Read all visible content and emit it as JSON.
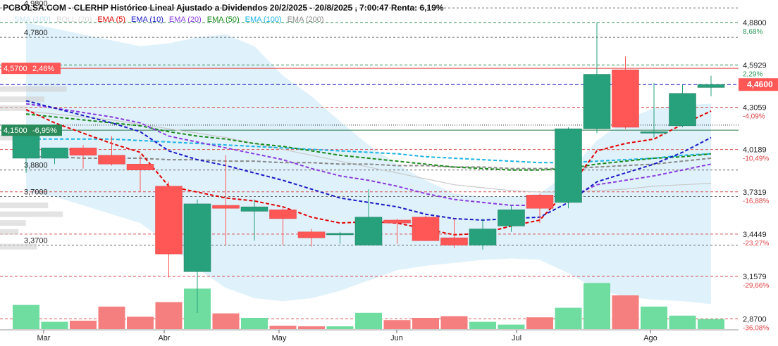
{
  "header": {
    "title": "PCBOLSA.COM - CLERHP Histórico Lineal Ajustado a Dividendos 20/2/2025 - 20/8/2025 , 7:00:47 Renta: 6,19%"
  },
  "legend": [
    {
      "label": "SMA (100)",
      "color": "#8ecae6",
      "faded": true
    },
    {
      "label": "BOLL (20)",
      "color": "#bbbbbb",
      "faded": true
    },
    {
      "label": "EMA (5)",
      "color": "#e00000"
    },
    {
      "label": "EMA (10)",
      "color": "#1a1ac8"
    },
    {
      "label": "EMA (20)",
      "color": "#8a3be0"
    },
    {
      "label": "EMA (50)",
      "color": "#1a8a1a"
    },
    {
      "label": "EMA (100)",
      "color": "#19b3e6"
    },
    {
      "label": "EMA (200)",
      "color": "#888888"
    }
  ],
  "chart_data": {
    "type": "candlestick",
    "y_range": [
      2.8,
      5.01
    ],
    "x_labels": [
      "Mar",
      "Abr",
      "May",
      "Jun",
      "Jul",
      "Ago"
    ],
    "right_axis": [
      {
        "price": "4,8800",
        "pct": "8,68%"
      },
      {
        "price": "4,5929",
        "pct": "2,29%"
      },
      {
        "price": "4,3059",
        "pct": "-4,09%"
      },
      {
        "price": "4,0189",
        "pct": "-10,49%"
      },
      {
        "price": "3,7319",
        "pct": "-16,88%"
      },
      {
        "price": "3,4449",
        "pct": "-23,27%"
      },
      {
        "price": "3,1579",
        "pct": "-29,66%"
      },
      {
        "price": "2,8700",
        "pct": "-36,08%"
      }
    ],
    "left_labels": [
      {
        "text": "4,9800",
        "value": 4.98
      },
      {
        "text": "4,7800",
        "value": 4.78
      },
      {
        "text": "3,8800",
        "value": 3.88
      },
      {
        "text": "3,7000",
        "value": 3.7
      },
      {
        "text": "3,3700",
        "value": 3.37
      }
    ],
    "current_price": {
      "label": "4,4600",
      "value": 4.46
    },
    "reference_line": {
      "label": "4,5700",
      "pct": "2,46%",
      "value": 4.57
    },
    "low_line": {
      "label": "4,1500",
      "pct": "-6,95%",
      "value": 4.15
    },
    "candles": [
      {
        "open": 3.96,
        "high": 4.17,
        "low": 3.86,
        "close": 4.15
      },
      {
        "open": 3.96,
        "high": 4.02,
        "low": 3.92,
        "close": 4.03
      },
      {
        "open": 4.03,
        "high": 4.05,
        "low": 3.89,
        "close": 3.98
      },
      {
        "open": 3.98,
        "high": 4.11,
        "low": 3.91,
        "close": 3.92
      },
      {
        "open": 3.92,
        "high": 3.98,
        "low": 3.73,
        "close": 3.88
      },
      {
        "open": 3.77,
        "high": 3.8,
        "low": 3.15,
        "close": 3.31
      },
      {
        "open": 3.19,
        "high": 3.68,
        "low": 2.91,
        "close": 3.65
      },
      {
        "open": 3.64,
        "high": 3.98,
        "low": 3.37,
        "close": 3.62
      },
      {
        "open": 3.6,
        "high": 3.68,
        "low": 3.4,
        "close": 3.63
      },
      {
        "open": 3.61,
        "high": 3.62,
        "low": 3.37,
        "close": 3.55
      },
      {
        "open": 3.46,
        "high": 3.48,
        "low": 3.36,
        "close": 3.42
      },
      {
        "open": 3.44,
        "high": 3.46,
        "low": 3.38,
        "close": 3.45
      },
      {
        "open": 3.37,
        "high": 3.75,
        "low": 3.37,
        "close": 3.56
      },
      {
        "open": 3.54,
        "high": 3.55,
        "low": 3.38,
        "close": 3.52
      },
      {
        "open": 3.56,
        "high": 3.57,
        "low": 3.41,
        "close": 3.4
      },
      {
        "open": 3.42,
        "high": 3.55,
        "low": 3.35,
        "close": 3.37
      },
      {
        "open": 3.37,
        "high": 3.55,
        "low": 3.34,
        "close": 3.48
      },
      {
        "open": 3.5,
        "high": 3.64,
        "low": 3.46,
        "close": 3.61
      },
      {
        "open": 3.71,
        "high": 3.72,
        "low": 3.52,
        "close": 3.62
      },
      {
        "open": 3.66,
        "high": 4.17,
        "low": 3.62,
        "close": 4.16
      },
      {
        "open": 4.16,
        "high": 4.88,
        "low": 4.13,
        "close": 4.53
      },
      {
        "open": 4.56,
        "high": 4.65,
        "low": 4.16,
        "close": 4.17
      },
      {
        "open": 4.13,
        "high": 4.47,
        "low": 4.1,
        "close": 4.14
      },
      {
        "open": 4.18,
        "high": 4.46,
        "low": 4.17,
        "close": 4.4
      },
      {
        "open": 4.44,
        "high": 4.52,
        "low": 4.38,
        "close": 4.46
      }
    ],
    "volume_color_up": "#6fdca0",
    "volume_color_down": "#f57f7f",
    "volume_relative": [
      0.43,
      0.13,
      0.15,
      0.4,
      0.22,
      0.48,
      0.72,
      0.28,
      0.2,
      0.06,
      0.05,
      0.05,
      0.29,
      0.16,
      0.2,
      0.23,
      0.13,
      0.08,
      0.21,
      0.38,
      0.82,
      0.6,
      0.4,
      0.24,
      0.18
    ],
    "bollinger_upper": [
      4.88,
      4.84,
      4.8,
      4.76,
      4.72,
      4.74,
      4.78,
      4.8,
      4.72,
      4.52,
      4.38,
      4.21,
      4.05,
      3.92,
      3.81,
      3.72,
      3.7,
      3.7,
      3.72,
      3.86,
      4.08,
      4.22,
      4.3,
      4.32,
      4.33
    ],
    "bollinger_lower": [
      3.73,
      3.7,
      3.64,
      3.58,
      3.52,
      3.38,
      3.21,
      3.08,
      3.01,
      2.99,
      3.01,
      3.06,
      3.13,
      3.2,
      3.23,
      3.25,
      3.27,
      3.28,
      3.27,
      3.18,
      3.07,
      3.02,
      3.0,
      2.99,
      2.97
    ],
    "volume_profile_rel": [
      {
        "price": 4.43,
        "rel": 0.9
      },
      {
        "price": 4.36,
        "rel": 0.6
      },
      {
        "price": 4.3,
        "rel": 0.35
      },
      {
        "price": 4.1,
        "rel": 0.3
      },
      {
        "price": 3.64,
        "rel": 0.65
      },
      {
        "price": 3.58,
        "rel": 0.85
      },
      {
        "price": 3.52,
        "rel": 0.35
      },
      {
        "price": 3.46,
        "rel": 0.25
      },
      {
        "price": 3.36,
        "rel": 0.5
      }
    ],
    "ema5": [
      4.29,
      4.2,
      4.13,
      4.06,
      4.0,
      3.77,
      3.73,
      3.69,
      3.67,
      3.63,
      3.56,
      3.52,
      3.53,
      3.52,
      3.48,
      3.44,
      3.45,
      3.5,
      3.54,
      3.75,
      4.01,
      4.06,
      4.09,
      4.19,
      4.28
    ],
    "ema10": [
      4.35,
      4.3,
      4.25,
      4.2,
      4.14,
      4.01,
      3.95,
      3.91,
      3.86,
      3.81,
      3.75,
      3.69,
      3.66,
      3.63,
      3.58,
      3.55,
      3.54,
      3.55,
      3.56,
      3.66,
      3.8,
      3.86,
      3.92,
      4.0,
      4.1
    ],
    "ema20": [
      4.33,
      4.3,
      4.27,
      4.24,
      4.2,
      4.11,
      4.07,
      4.03,
      3.99,
      3.95,
      3.89,
      3.84,
      3.81,
      3.77,
      3.72,
      3.68,
      3.66,
      3.64,
      3.64,
      3.69,
      3.78,
      3.81,
      3.84,
      3.88,
      3.92
    ],
    "ema50": [
      4.26,
      4.24,
      4.22,
      4.2,
      4.18,
      4.14,
      4.11,
      4.09,
      4.06,
      4.04,
      4.01,
      3.98,
      3.96,
      3.94,
      3.92,
      3.9,
      3.89,
      3.88,
      3.88,
      3.89,
      3.92,
      3.94,
      3.96,
      3.97,
      3.99
    ],
    "ema100": [
      4.09,
      4.09,
      4.09,
      4.09,
      4.08,
      4.07,
      4.06,
      4.05,
      4.04,
      4.03,
      4.02,
      4.01,
      4.0,
      3.99,
      3.97,
      3.96,
      3.95,
      3.94,
      3.93,
      3.93,
      3.94,
      3.95,
      3.96,
      3.98,
      3.99
    ],
    "ema200": [
      3.97,
      3.97,
      3.96,
      3.96,
      3.96,
      3.95,
      3.95,
      3.94,
      3.94,
      3.93,
      3.93,
      3.92,
      3.92,
      3.91,
      3.91,
      3.9,
      3.9,
      3.89,
      3.89,
      3.89,
      3.9,
      3.91,
      3.92,
      3.94,
      3.96
    ],
    "sma100_gray": [
      4.28,
      4.26,
      4.24,
      4.22,
      4.19,
      4.16,
      4.13,
      4.1,
      4.06,
      4.02,
      3.98,
      3.94,
      3.9,
      3.86,
      3.82,
      3.78,
      3.76,
      3.74,
      3.73,
      3.73,
      3.74,
      3.75,
      3.77,
      3.78,
      3.79
    ],
    "colors": {
      "up": "#26a17b",
      "down": "#ff5656",
      "ema5": "#e00000",
      "ema10": "#1a1ac8",
      "ema20": "#8a3be0",
      "ema50": "#1a8a1a",
      "ema100": "#19b3e6",
      "ema200": "#888888",
      "boll_fill": "#d9effa",
      "grid_red": "#d95050",
      "grid_green": "#2a8a4a"
    }
  }
}
